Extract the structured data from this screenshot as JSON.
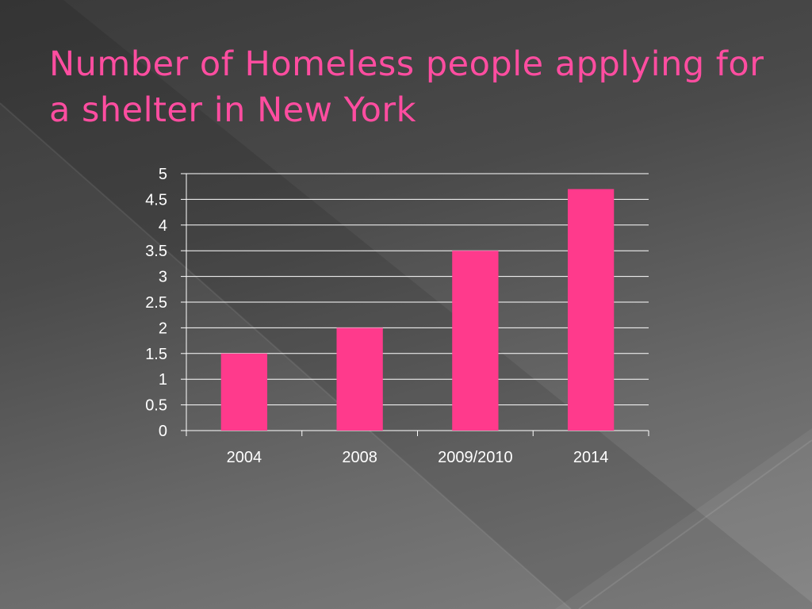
{
  "slide": {
    "title": "Number of Homeless people applying for a shelter in New York"
  },
  "colors": {
    "bar": "#ff3a8c",
    "title": "#ff4da0",
    "gridline": "#ffffff",
    "axis_text": "#ffffff"
  },
  "chart_data": {
    "type": "bar",
    "title": "",
    "xlabel": "",
    "ylabel": "",
    "categories": [
      "2004",
      "2008",
      "2009/2010",
      "2014"
    ],
    "values": [
      1.5,
      2,
      3.5,
      4.7
    ],
    "ylim": [
      0,
      5
    ],
    "yticks": [
      "0",
      "0.5",
      "1",
      "1.5",
      "2",
      "2.5",
      "3",
      "3.5",
      "4",
      "4.5",
      "5"
    ],
    "grid": true,
    "legend": "none"
  }
}
